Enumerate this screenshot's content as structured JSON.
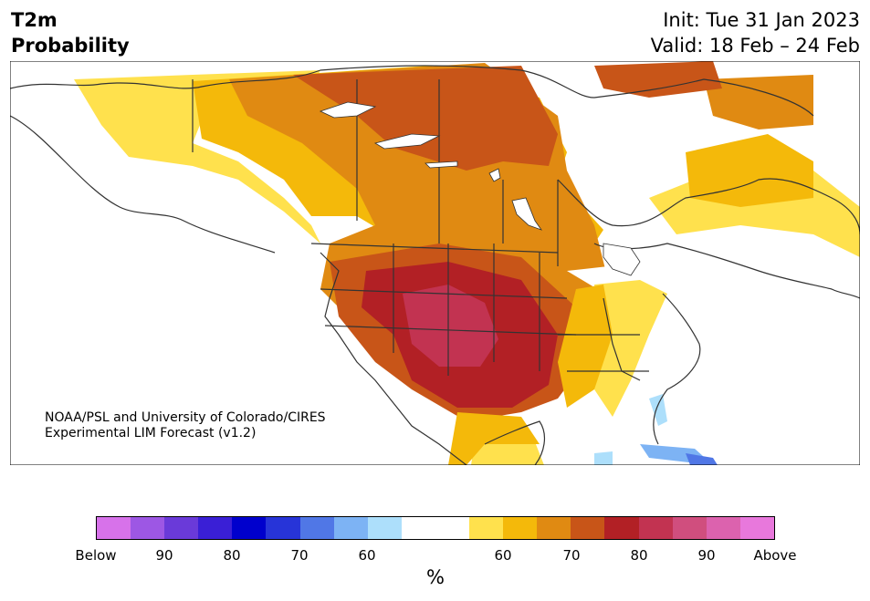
{
  "title": {
    "left_line1": "T2m",
    "left_line2": "Probability",
    "right_line1": "Init: Tue 31 Jan 2023",
    "right_line2": "Valid: 18 Feb – 24 Feb"
  },
  "credit": {
    "line1": "NOAA/PSL and University of Colorado/CIRES",
    "line2": "Experimental LIM Forecast (v1.2)"
  },
  "colorbar": {
    "colors": [
      "#d772ea",
      "#9d57e4",
      "#6a3ad9",
      "#3a1fd6",
      "#0000cd",
      "#2734d8",
      "#5077e6",
      "#7db3f4",
      "#addffb",
      "#ffffff",
      "#ffffff",
      "#ffe14d",
      "#f4b90a",
      "#e08a12",
      "#c85518",
      "#b22025",
      "#c23351",
      "#d04e7e",
      "#dc62ae",
      "#e878dc"
    ],
    "tick_labels": [
      "Below",
      "90",
      "80",
      "70",
      "60",
      "60",
      "70",
      "80",
      "90",
      "Above"
    ],
    "unit": "%"
  },
  "map": {
    "color_levels": {
      "above_50_60": "#ffe14d",
      "above_60_70": "#f4b90a",
      "above_70_80": "#e08a12",
      "above_80_90": "#c85518",
      "above_90": "#b22025",
      "above_max": "#c23351",
      "below_60_70": "#7db3f4",
      "below_50_60": "#addffb",
      "below_max": "#5077e6",
      "neutral": "#ffffff"
    }
  }
}
